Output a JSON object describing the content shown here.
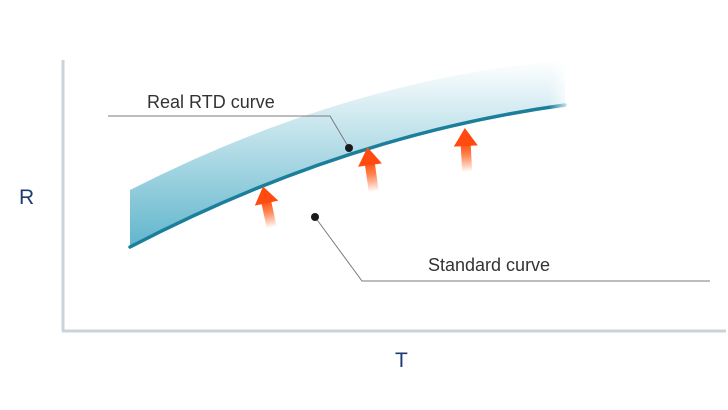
{
  "diagram": {
    "y_axis_label": "R",
    "x_axis_label": "T",
    "real_curve_label": "Real RTD curve",
    "standard_curve_label": "Standard curve",
    "colors": {
      "axis": "#c9d3da",
      "real_curve": "#1b7f9c",
      "real_band": "#2b9dbb",
      "standard_hatch": "#8fb3c6",
      "arrow": "#ff5a1f",
      "leader_line": "#7b7b7b",
      "marker": "#1a1a1a"
    },
    "icons": [
      "up-arrow-icon",
      "up-arrow-icon",
      "up-arrow-icon"
    ]
  }
}
